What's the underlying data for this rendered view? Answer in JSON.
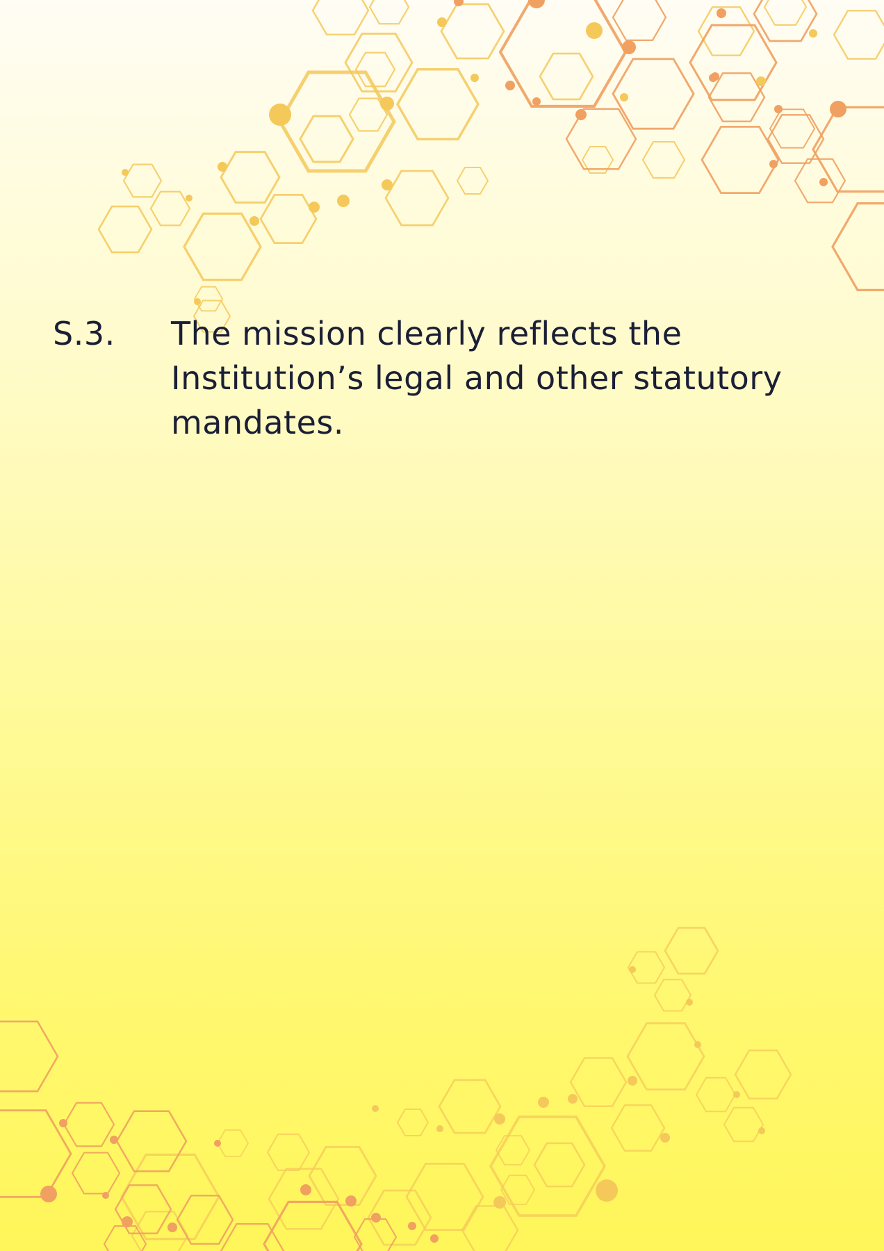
{
  "statement": {
    "code": "S.3.",
    "text": "The mission clearly reflects the Institution’s legal and other statutory mandates."
  },
  "theme": {
    "background_top": "#fffdf4",
    "background_bottom": "#fff65a",
    "text_color": "#1b1f36",
    "hex_yellow": "#f5c85a",
    "hex_orange": "#f0a060"
  }
}
